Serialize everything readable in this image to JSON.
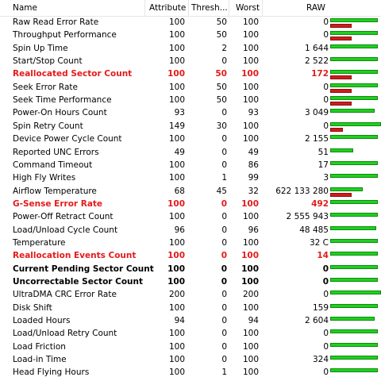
{
  "header": {
    "name": "Name",
    "attribute": "Attribute",
    "threshold": "Thresh...",
    "worst": "Worst",
    "raw": "RAW"
  },
  "colors": {
    "good": "#1fd01f",
    "bad": "#d01c1c",
    "alert_text": "#e51b1b"
  },
  "rows": [
    {
      "name": "Raw Read Error Rate",
      "attribute": "100",
      "threshold": "50",
      "worst": "100",
      "raw": "0",
      "style": "normal",
      "green": 0.94,
      "red": 0.42
    },
    {
      "name": "Throughput Performance",
      "attribute": "100",
      "threshold": "50",
      "worst": "100",
      "raw": "0",
      "style": "normal",
      "green": 0.94,
      "red": 0.42
    },
    {
      "name": "Spin Up Time",
      "attribute": "100",
      "threshold": "2",
      "worst": "100",
      "raw": "1 644",
      "style": "normal",
      "green": 0.94,
      "red": 0
    },
    {
      "name": "Start/Stop Count",
      "attribute": "100",
      "threshold": "0",
      "worst": "100",
      "raw": "2 522",
      "style": "normal",
      "green": 0.94,
      "red": 0
    },
    {
      "name": "Reallocated Sector Count",
      "attribute": "100",
      "threshold": "50",
      "worst": "100",
      "raw": "172",
      "style": "red",
      "green": 0.94,
      "red": 0.42
    },
    {
      "name": "Seek Error Rate",
      "attribute": "100",
      "threshold": "50",
      "worst": "100",
      "raw": "0",
      "style": "normal",
      "green": 0.94,
      "red": 0.42
    },
    {
      "name": "Seek Time Performance",
      "attribute": "100",
      "threshold": "50",
      "worst": "100",
      "raw": "0",
      "style": "normal",
      "green": 0.94,
      "red": 0.42
    },
    {
      "name": "Power-On Hours Count",
      "attribute": "93",
      "threshold": "0",
      "worst": "93",
      "raw": "3 049",
      "style": "normal",
      "green": 0.87,
      "red": 0
    },
    {
      "name": "Spin Retry Count",
      "attribute": "149",
      "threshold": "30",
      "worst": "100",
      "raw": "0",
      "style": "normal",
      "green": 1.0,
      "red": 0.25
    },
    {
      "name": "Device Power Cycle Count",
      "attribute": "100",
      "threshold": "0",
      "worst": "100",
      "raw": "2 155",
      "style": "normal",
      "green": 0.94,
      "red": 0
    },
    {
      "name": "Reported UNC Errors",
      "attribute": "49",
      "threshold": "0",
      "worst": "49",
      "raw": "51",
      "style": "normal",
      "green": 0.46,
      "red": 0
    },
    {
      "name": "Command Timeout",
      "attribute": "100",
      "threshold": "0",
      "worst": "86",
      "raw": "17",
      "style": "normal",
      "green": 0.94,
      "red": 0
    },
    {
      "name": "High Fly Writes",
      "attribute": "100",
      "threshold": "1",
      "worst": "99",
      "raw": "3",
      "style": "normal",
      "green": 0.94,
      "red": 0
    },
    {
      "name": "Airflow Temperature",
      "attribute": "68",
      "threshold": "45",
      "worst": "32",
      "raw": "622 133 280",
      "style": "normal",
      "green": 0.64,
      "red": 0.42
    },
    {
      "name": "G-Sense Error Rate",
      "attribute": "100",
      "threshold": "0",
      "worst": "100",
      "raw": "492",
      "style": "red",
      "green": 0.94,
      "red": 0
    },
    {
      "name": "Power-Off Retract Count",
      "attribute": "100",
      "threshold": "0",
      "worst": "100",
      "raw": "2 555 943",
      "style": "normal",
      "green": 0.94,
      "red": 0
    },
    {
      "name": "Load/Unload Cycle Count",
      "attribute": "96",
      "threshold": "0",
      "worst": "96",
      "raw": "48 485",
      "style": "normal",
      "green": 0.9,
      "red": 0
    },
    {
      "name": "Temperature",
      "attribute": "100",
      "threshold": "0",
      "worst": "100",
      "raw": "32 C",
      "style": "normal",
      "green": 0.94,
      "red": 0
    },
    {
      "name": "Reallocation Events Count",
      "attribute": "100",
      "threshold": "0",
      "worst": "100",
      "raw": "14",
      "style": "red",
      "green": 0.94,
      "red": 0
    },
    {
      "name": "Current Pending Sector Count",
      "attribute": "100",
      "threshold": "0",
      "worst": "100",
      "raw": "0",
      "style": "bold",
      "green": 0.94,
      "red": 0
    },
    {
      "name": "Uncorrectable Sector Count",
      "attribute": "100",
      "threshold": "0",
      "worst": "100",
      "raw": "0",
      "style": "bold",
      "green": 0.94,
      "red": 0
    },
    {
      "name": "UltraDMA CRC Error Rate",
      "attribute": "200",
      "threshold": "0",
      "worst": "200",
      "raw": "0",
      "style": "normal",
      "green": 1.0,
      "red": 0
    },
    {
      "name": "Disk Shift",
      "attribute": "100",
      "threshold": "0",
      "worst": "100",
      "raw": "159",
      "style": "normal",
      "green": 0.94,
      "red": 0
    },
    {
      "name": "Loaded Hours",
      "attribute": "94",
      "threshold": "0",
      "worst": "94",
      "raw": "2 604",
      "style": "normal",
      "green": 0.88,
      "red": 0
    },
    {
      "name": "Load/Unload Retry Count",
      "attribute": "100",
      "threshold": "0",
      "worst": "100",
      "raw": "0",
      "style": "normal",
      "green": 0.94,
      "red": 0
    },
    {
      "name": "Load Friction",
      "attribute": "100",
      "threshold": "0",
      "worst": "100",
      "raw": "0",
      "style": "normal",
      "green": 0.94,
      "red": 0
    },
    {
      "name": "Load-in Time",
      "attribute": "100",
      "threshold": "0",
      "worst": "100",
      "raw": "324",
      "style": "normal",
      "green": 0.94,
      "red": 0
    },
    {
      "name": "Head Flying Hours",
      "attribute": "100",
      "threshold": "1",
      "worst": "100",
      "raw": "0",
      "style": "normal",
      "green": 0.94,
      "red": 0
    }
  ]
}
